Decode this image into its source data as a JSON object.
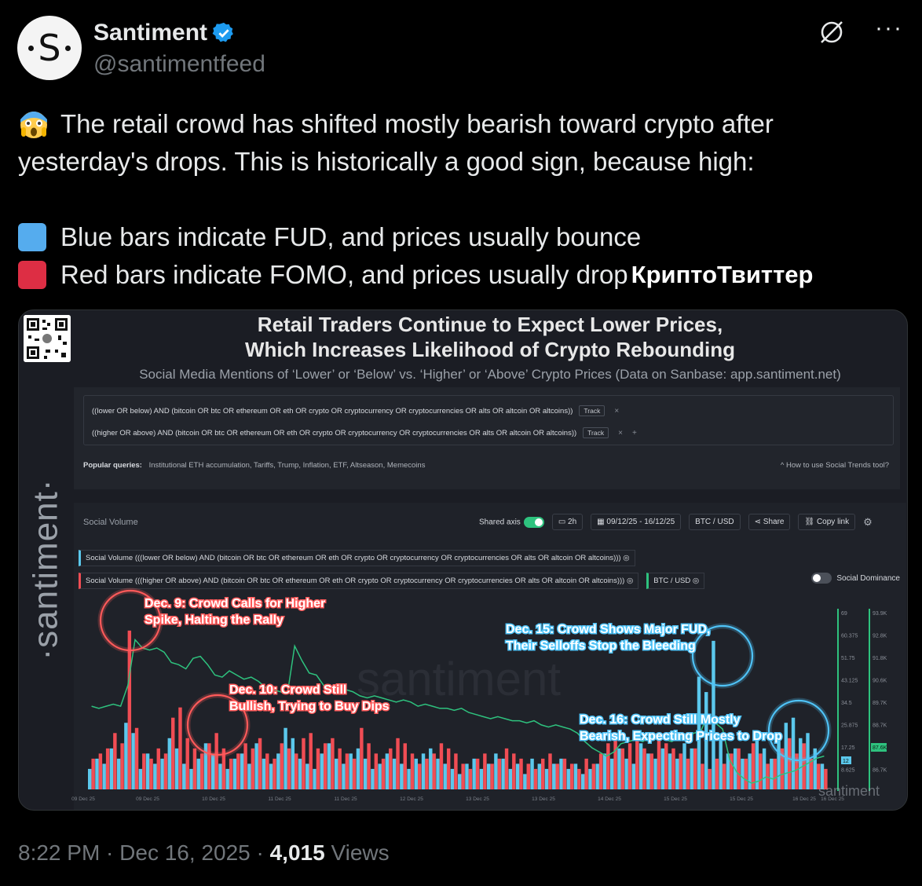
{
  "account": {
    "display_name": "Santiment",
    "handle": "@santimentfeed",
    "avatar_letter": "S",
    "verified": true
  },
  "tweet": {
    "line1": "The retail crowd has shifted mostly bearish toward crypto after",
    "line2": "yesterday's drops. This is historically a good sign, because high:",
    "line3": "Blue bars indicate FUD, and prices usually bounce",
    "line4": "Red bars indicate FOMO, and prices usually drop",
    "translate_label": "КриптоТвиттер",
    "blue_square_color": "#55acee",
    "red_square_color": "#dd2e44"
  },
  "image": {
    "title_line1": "Retail Traders Continue to Expect Lower Prices,",
    "title_line2": "Which Increases Likelihood of Crypto Rebounding",
    "subtitle": "Social Media Mentions of ‘Lower’ or ‘Below’ vs. ‘Higher’ or ‘Above’ Crypto Prices (Data on Sanbase: app.santiment.net)",
    "brand": "·santiment·",
    "query1": "((lower OR below) AND (bitcoin OR btc OR ethereum OR eth OR crypto OR cryptocurrency OR cryptocurrencies OR alts OR altcoin OR altcoins))",
    "query2": "((higher OR above) AND (bitcoin OR btc OR ethereum OR eth OR crypto OR cryptocurrency OR cryptocurrencies OR alts OR altcoin OR altcoins))",
    "track_label": "Track",
    "popular_label": "Popular queries:",
    "popular_items": "Institutional ETH accumulation, Tariffs, Trump, Inflation, ETF, Altseason, Memecoins",
    "how_to": "How to use Social Trends tool?",
    "panel_title": "Social Volume",
    "shared_axis": "Shared axis",
    "interval": "2h",
    "date_range": "09/12/25 - 16/12/25",
    "pair": "BTC / USD",
    "share": "Share",
    "copy_link": "Copy link",
    "legend_blue": "Social Volume (((lower OR below) AND (bitcoin OR btc OR ethereum OR eth OR crypto OR cryptocurrency OR cryptocurrencies OR alts OR altcoin OR altcoins)))",
    "legend_red": "Social Volume (((higher OR above) AND (bitcoin OR btc OR ethereum OR eth OR crypto OR cryptocurrency OR cryptocurrencies OR alts OR altcoin OR altcoins)))",
    "legend_price": "BTC / USD",
    "social_dominance": "Social Dominance",
    "annotations": [
      {
        "text1": "Dec. 9: Crowd Calls for Higher",
        "text2": "Spike, Halting the Rally",
        "color": "#ff5a5a"
      },
      {
        "text1": "Dec. 10: Crowd Still",
        "text2": "Bullish, Trying to Buy Dips",
        "color": "#ff5a5a"
      },
      {
        "text1": "Dec. 15: Crowd Shows Major FUD,",
        "text2": "Their Selloffs Stop the Bleeding",
        "color": "#4fc3f7"
      },
      {
        "text1": "Dec. 16: Crowd Still Mostly",
        "text2": "Bearish, Expecting Prices to Drop",
        "color": "#4fc3f7"
      }
    ]
  },
  "chart_data": {
    "type": "bar",
    "x_ticks": [
      "09 Dec 25",
      "09 Dec 25",
      "10 Dec 25",
      "11 Dec 25",
      "11 Dec 25",
      "12 Dec 25",
      "13 Dec 25",
      "13 Dec 25",
      "14 Dec 25",
      "15 Dec 25",
      "15 Dec 25",
      "16 Dec 25",
      "16 Dec 25"
    ],
    "y_left_ticks": [
      "69",
      "60.375",
      "51.75",
      "43.125",
      "34.5",
      "25.875",
      "17.25",
      "8.625"
    ],
    "y_right_ticks": [
      "93.9K",
      "92.8K",
      "91.8K",
      "90.6K",
      "89.7K",
      "88.7K",
      "87.6K",
      "86.7K"
    ],
    "current_social_value": "12",
    "current_price_label": "87.6K",
    "ylim": [
      0,
      69
    ],
    "series": [
      {
        "name": "Social Volume (((lower OR below) AND (bitcoin OR btc OR ethereum OR eth OR crypto OR cryptocurrency OR cryptocurrencies OR alts OR altcoin OR altcoins)))",
        "color": "#5bc8ec",
        "values": [
          8,
          12,
          10,
          16,
          12,
          26,
          22,
          8,
          14,
          10,
          12,
          20,
          16,
          10,
          8,
          12,
          18,
          14,
          10,
          8,
          12,
          14,
          10,
          18,
          12,
          10,
          14,
          24,
          20,
          12,
          10,
          8,
          14,
          18,
          12,
          10,
          14,
          16,
          12,
          8,
          10,
          14,
          12,
          10,
          8,
          12,
          14,
          16,
          12,
          10,
          8,
          6,
          10,
          12,
          8,
          10,
          14,
          12,
          8,
          10,
          6,
          12,
          10,
          8,
          10,
          12,
          8,
          10,
          6,
          8,
          10,
          14,
          12,
          16,
          12,
          10,
          18,
          14,
          12,
          16,
          14,
          12,
          18,
          16,
          44,
          38,
          58,
          20,
          14,
          16,
          12,
          14,
          22,
          16,
          12,
          20,
          26,
          28,
          20,
          22,
          16,
          10
        ]
      },
      {
        "name": "Social Volume (((higher OR above) AND (bitcoin OR btc OR ethereum OR eth OR crypto OR cryptocurrency OR cryptocurrencies OR alts OR altcoin OR altcoins)))",
        "color": "#f04d54",
        "values": [
          12,
          14,
          16,
          22,
          18,
          62,
          24,
          14,
          12,
          16,
          14,
          28,
          32,
          20,
          16,
          14,
          18,
          22,
          16,
          12,
          14,
          18,
          16,
          20,
          14,
          12,
          18,
          16,
          14,
          20,
          22,
          16,
          18,
          20,
          16,
          14,
          12,
          24,
          18,
          14,
          12,
          16,
          20,
          18,
          14,
          10,
          12,
          14,
          18,
          16,
          14,
          10,
          8,
          12,
          14,
          10,
          12,
          16,
          14,
          12,
          10,
          8,
          12,
          14,
          10,
          12,
          10,
          8,
          12,
          10,
          14,
          18,
          20,
          16,
          18,
          22,
          16,
          14,
          20,
          18,
          16,
          14,
          12,
          16,
          10,
          8,
          12,
          10,
          14,
          16,
          12,
          18,
          14,
          10,
          12,
          16,
          20,
          14,
          18,
          12,
          10,
          8
        ]
      },
      {
        "name": "BTC / USD",
        "color": "#2ec27e",
        "values": [
          90.0,
          89.9,
          90.0,
          90.1,
          90.0,
          91.0,
          93.2,
          92.8,
          92.7,
          92.8,
          92.6,
          92.1,
          92.0,
          91.8,
          92.3,
          92.4,
          92.0,
          91.5,
          91.4,
          91.7,
          91.5,
          91.3,
          91.4,
          91.2,
          90.9,
          90.8,
          90.7,
          90.6,
          92.9,
          92.2,
          91.6,
          91.5,
          91.0,
          90.8,
          90.6,
          90.8,
          90.7,
          90.5,
          90.4,
          90.5,
          90.4,
          90.3,
          90.2,
          90.3,
          90.2,
          90.0,
          90.1,
          90.0,
          89.9,
          89.9,
          89.8,
          89.9,
          89.7,
          89.6,
          89.5,
          89.4,
          89.5,
          89.4,
          89.3,
          89.3,
          89.2,
          89.3,
          89.1,
          89.0,
          89.1,
          89.0,
          88.9,
          88.7,
          88.3,
          88.0,
          87.8,
          87.6,
          87.8,
          88.2,
          88.3,
          88.4,
          88.3,
          88.5,
          88.6,
          88.4,
          88.3,
          88.5,
          88.4,
          88.7,
          88.8,
          89.6,
          89.2,
          88.9,
          87.4,
          86.8,
          86.5,
          86.3,
          86.4,
          86.6,
          86.5,
          86.7,
          86.8,
          86.9,
          87.1,
          87.3,
          87.5,
          87.6
        ]
      }
    ]
  }
}
